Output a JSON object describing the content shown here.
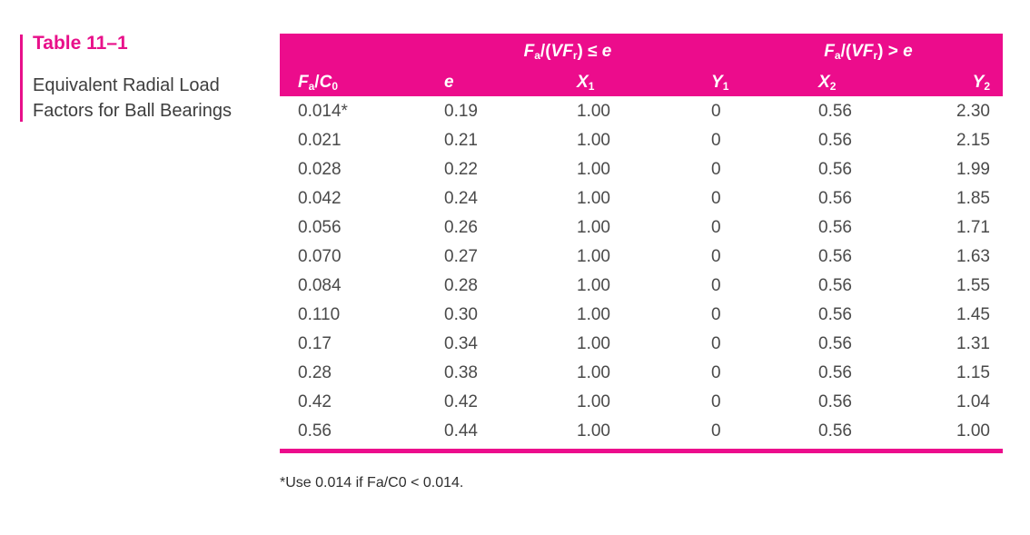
{
  "caption": {
    "number": "Table 11–1",
    "title": "Equivalent Radial Load Factors for Ball Bearings"
  },
  "header": {
    "group1": "Fa/(VFr) ≤ e",
    "group2": "Fa/(VFr) > e",
    "columns": [
      "Fa/C0",
      "e",
      "X1",
      "Y1",
      "X2",
      "Y2"
    ]
  },
  "rows": [
    [
      "0.014*",
      "0.19",
      "1.00",
      "0",
      "0.56",
      "2.30"
    ],
    [
      "0.021",
      "0.21",
      "1.00",
      "0",
      "0.56",
      "2.15"
    ],
    [
      "0.028",
      "0.22",
      "1.00",
      "0",
      "0.56",
      "1.99"
    ],
    [
      "0.042",
      "0.24",
      "1.00",
      "0",
      "0.56",
      "1.85"
    ],
    [
      "0.056",
      "0.26",
      "1.00",
      "0",
      "0.56",
      "1.71"
    ],
    [
      "0.070",
      "0.27",
      "1.00",
      "0",
      "0.56",
      "1.63"
    ],
    [
      "0.084",
      "0.28",
      "1.00",
      "0",
      "0.56",
      "1.55"
    ],
    [
      "0.110",
      "0.30",
      "1.00",
      "0",
      "0.56",
      "1.45"
    ],
    [
      "0.17",
      "0.34",
      "1.00",
      "0",
      "0.56",
      "1.31"
    ],
    [
      "0.28",
      "0.38",
      "1.00",
      "0",
      "0.56",
      "1.15"
    ],
    [
      "0.42",
      "0.42",
      "1.00",
      "0",
      "0.56",
      "1.04"
    ],
    [
      "0.56",
      "0.44",
      "1.00",
      "0",
      "0.56",
      "1.00"
    ]
  ],
  "footnote": "*Use 0.014 if Fa/C0 < 0.014.",
  "colors": {
    "accent": "#ec0c8c",
    "text": "#4a4a4a"
  }
}
